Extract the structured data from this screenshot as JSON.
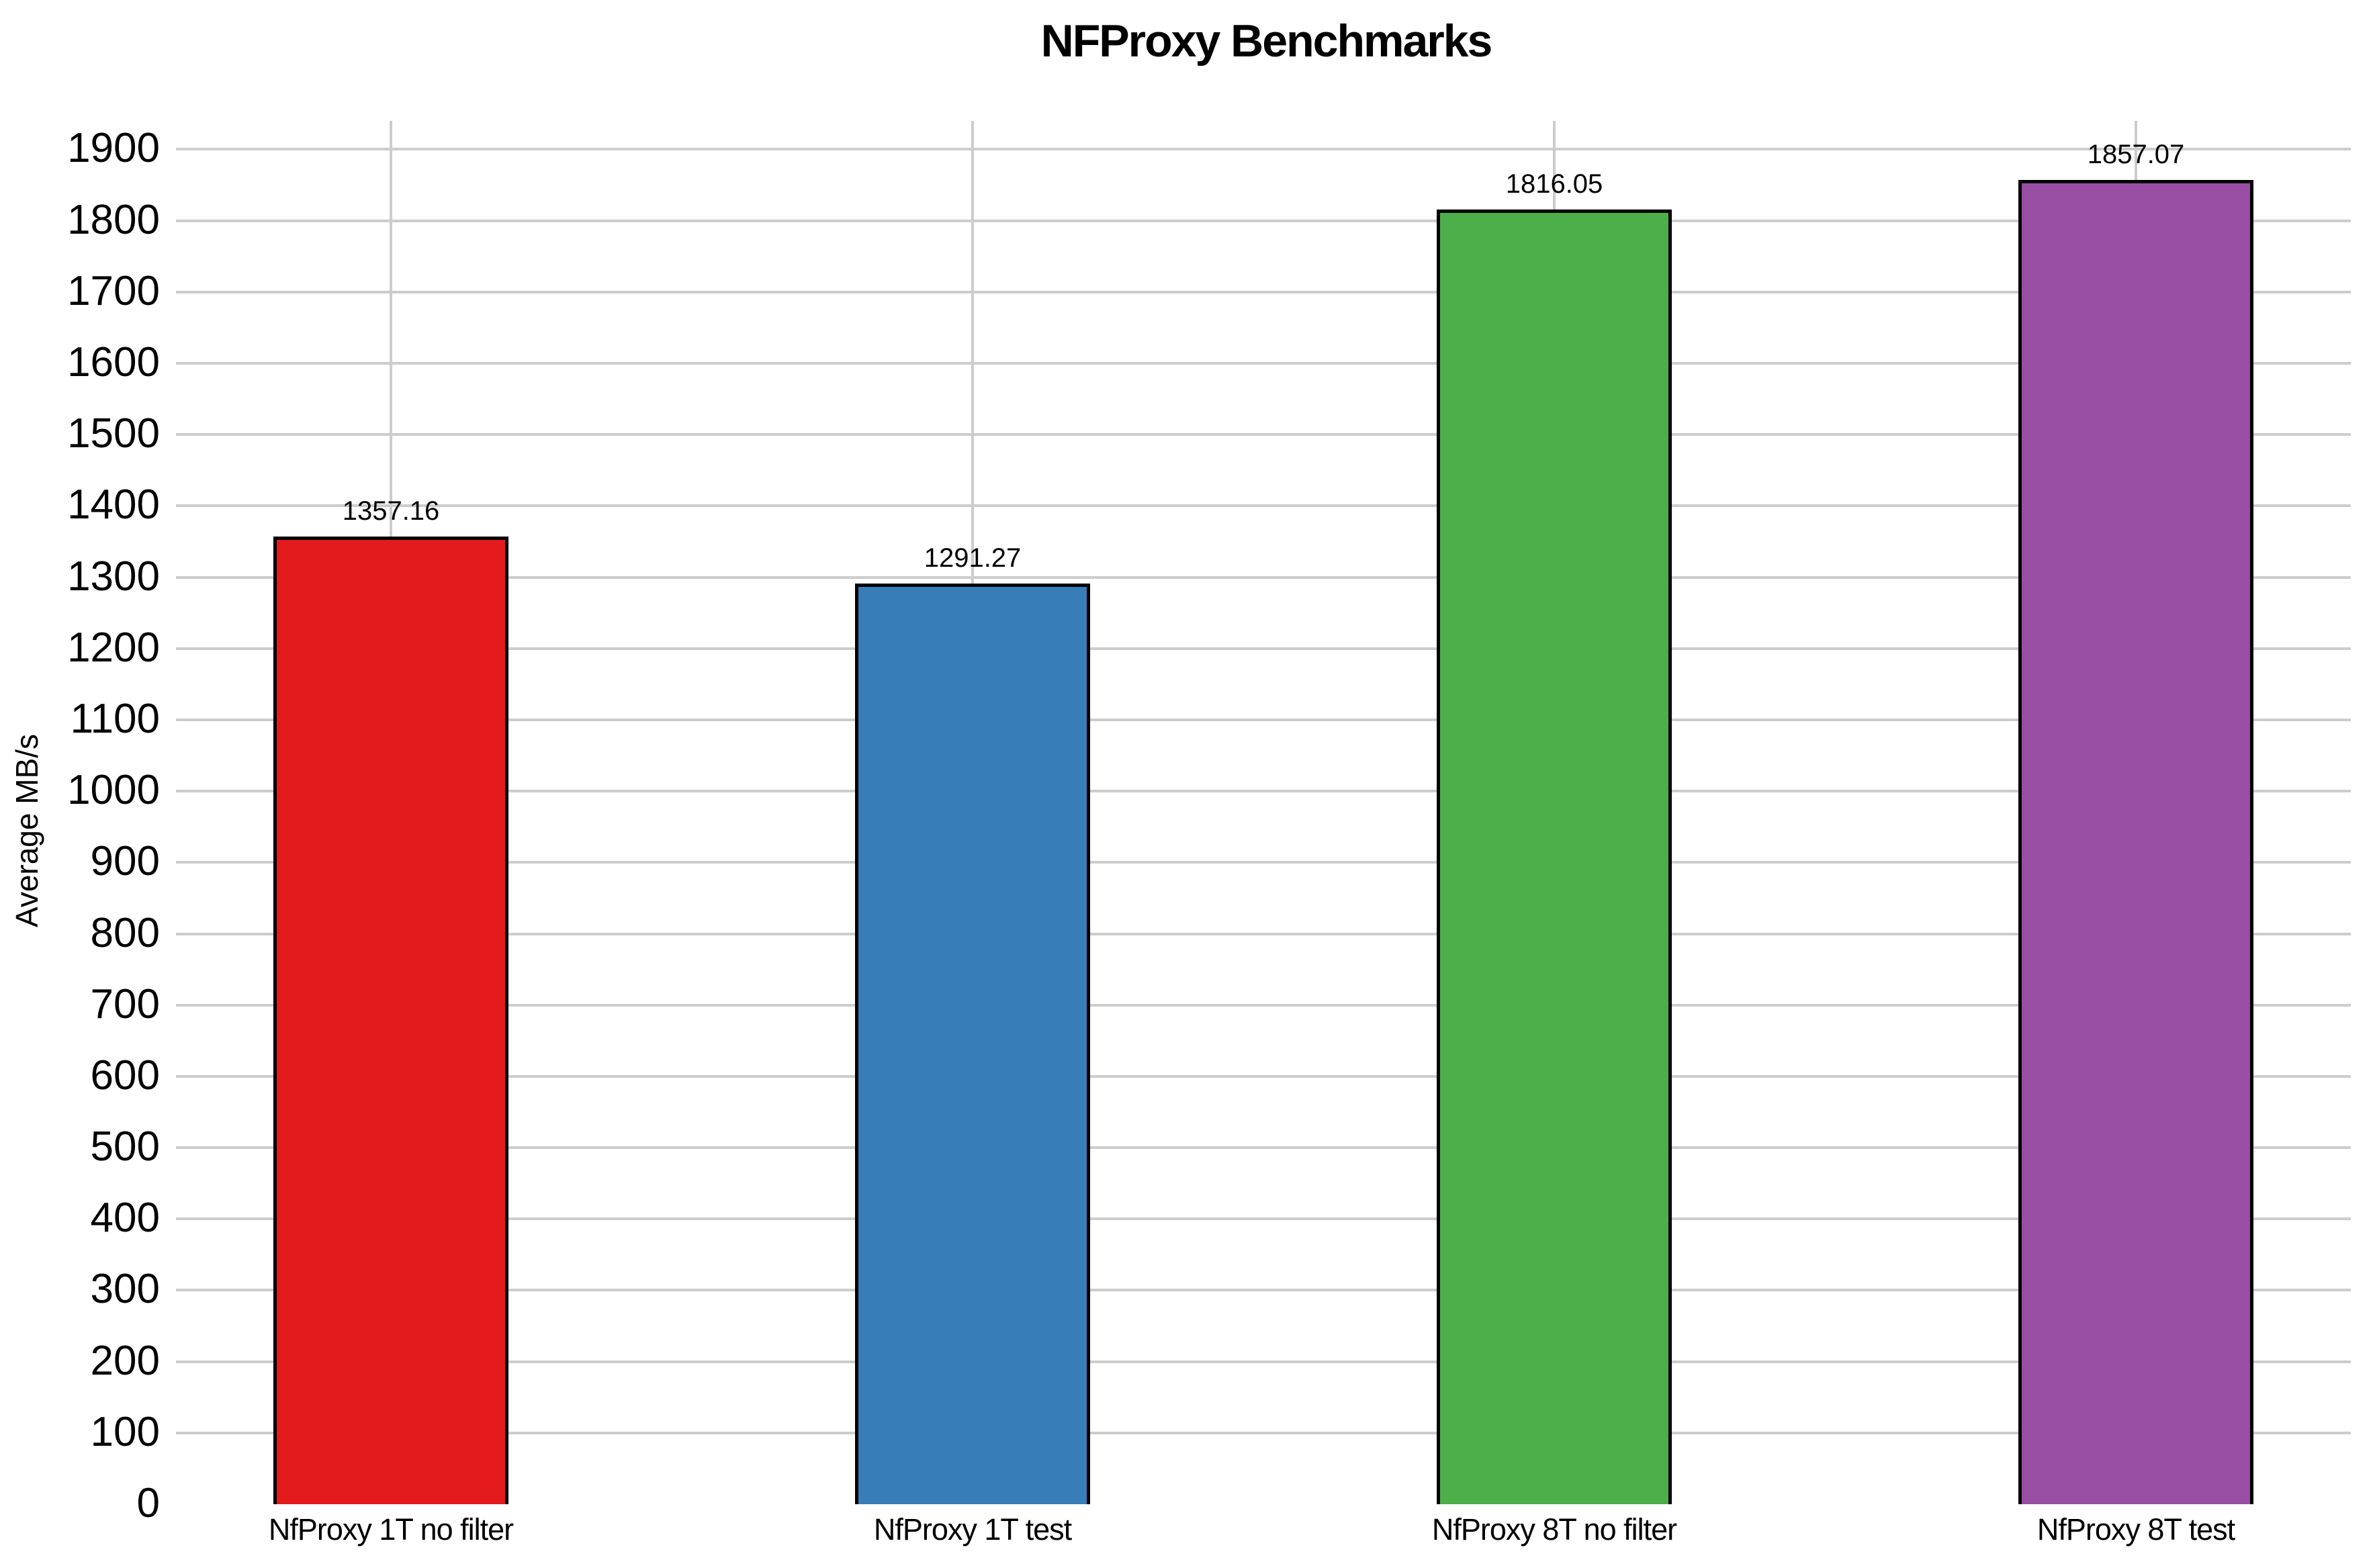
{
  "chart": {
    "title": "NFProxy Benchmarks",
    "ylabel": "Average MB/s"
  },
  "chart_data": {
    "type": "bar",
    "title": "NFProxy Benchmarks",
    "xlabel": "",
    "ylabel": "Average MB/s",
    "categories": [
      "NfProxy 1T no filter",
      "NfProxy 1T test",
      "NfProxy 8T no filter",
      "NfProxy 8T test"
    ],
    "values": [
      1357.16,
      1291.27,
      1816.05,
      1857.07
    ],
    "value_labels": [
      "1357.16",
      "1291.27",
      "1816.05",
      "1857.07"
    ],
    "series": [
      {
        "name": "Average MB/s",
        "values": [
          1357.16,
          1291.27,
          1816.05,
          1857.07
        ]
      }
    ],
    "bar_colors": [
      "#e41a1c",
      "#377eb8",
      "#4daf4a",
      "#984ea3"
    ],
    "bar_edge_color": "#000000",
    "gridline_color": "#cccccc",
    "text_color": "#000000",
    "background_color": "#ffffff",
    "ylim": [
      0,
      1940
    ],
    "ytick_min": 0,
    "ytick_max": 1900,
    "ytick_step": 100,
    "grid": true,
    "legend_position": "none"
  }
}
